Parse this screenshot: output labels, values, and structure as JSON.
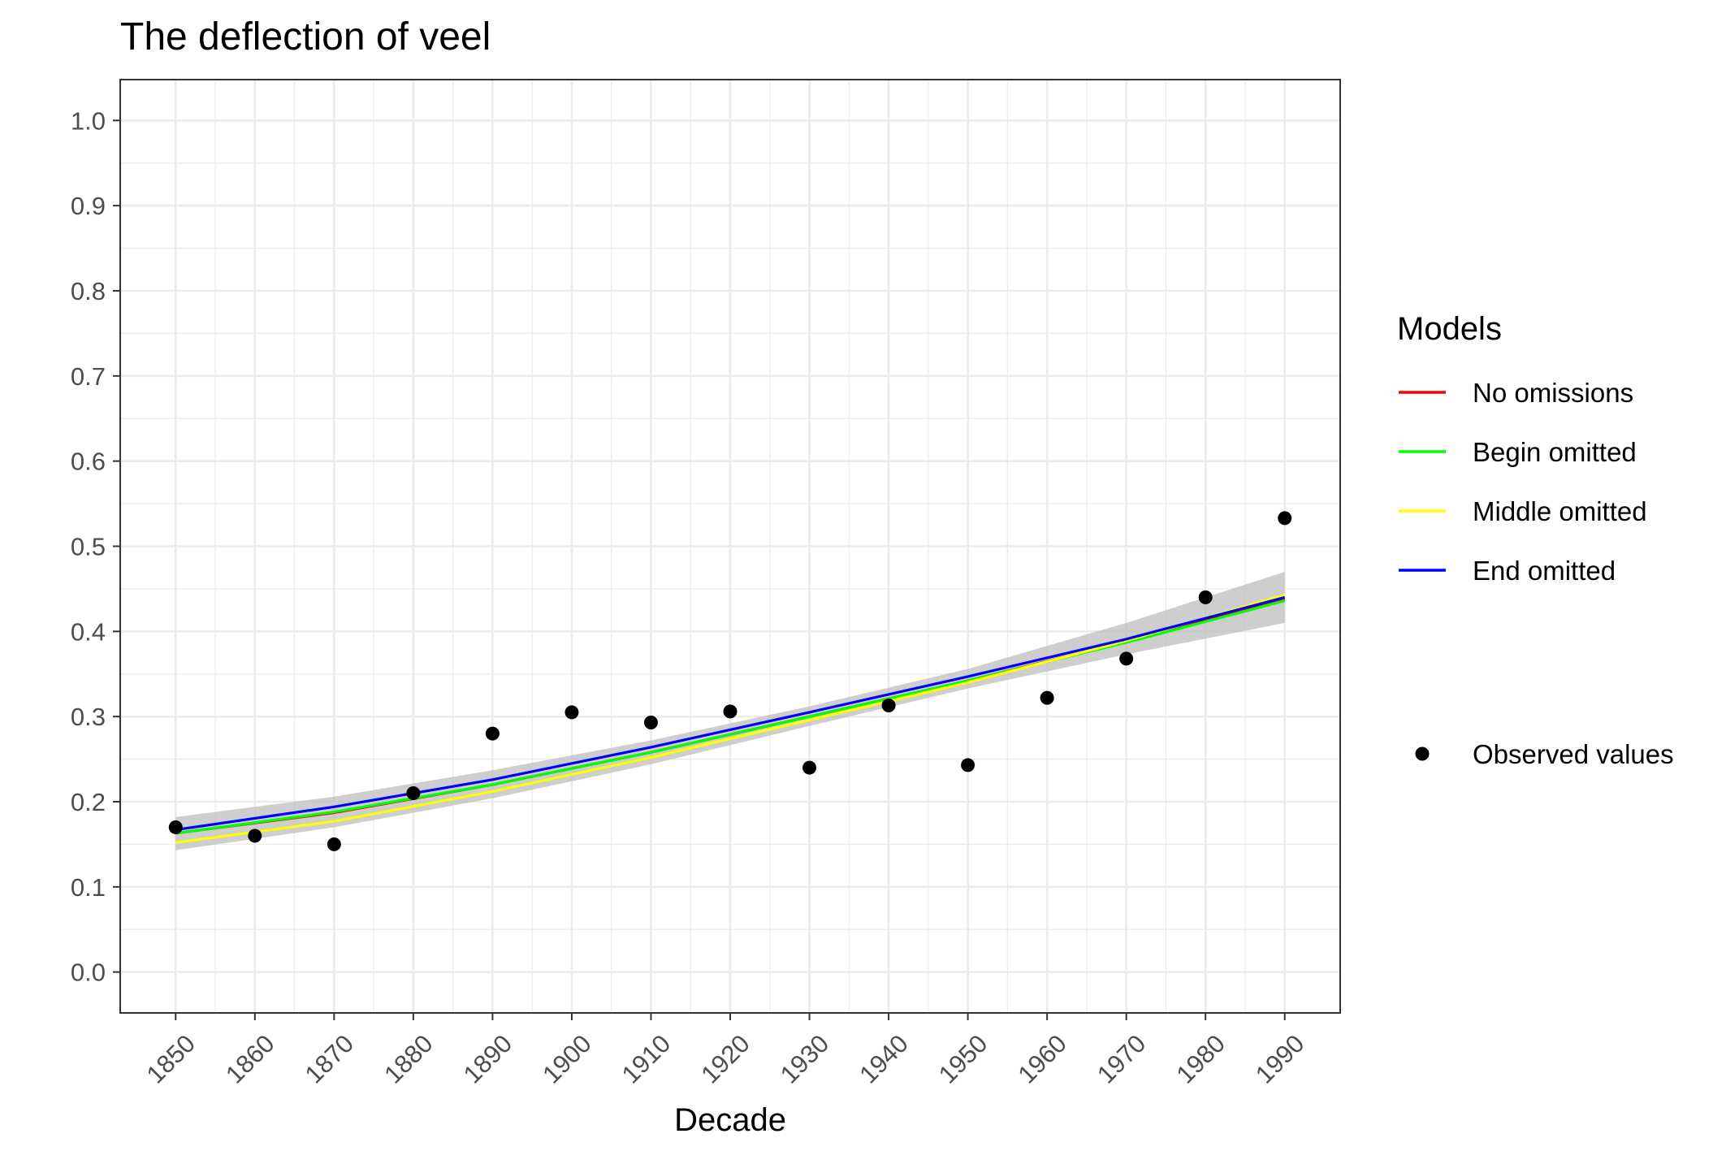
{
  "chart_data": {
    "type": "line",
    "title": "The deflection of veel",
    "xlabel": "Decade",
    "ylabel": "",
    "xlim": [
      1843,
      1997
    ],
    "ylim": [
      -0.048,
      1.048
    ],
    "x_ticks": [
      1850,
      1860,
      1870,
      1880,
      1890,
      1900,
      1910,
      1920,
      1930,
      1940,
      1950,
      1960,
      1970,
      1980,
      1990
    ],
    "y_ticks": [
      "0.0",
      "0.1",
      "0.2",
      "0.3",
      "0.4",
      "0.5",
      "0.6",
      "0.7",
      "0.8",
      "0.9",
      "1.0"
    ],
    "grid": true,
    "legend_title": "Models",
    "legend_position": "right",
    "observed": {
      "name": "Observed values",
      "color": "#000000",
      "x": [
        1850,
        1860,
        1870,
        1880,
        1890,
        1900,
        1910,
        1920,
        1930,
        1940,
        1950,
        1960,
        1970,
        1980,
        1990
      ],
      "y": [
        0.17,
        0.16,
        0.15,
        0.21,
        0.28,
        0.305,
        0.293,
        0.306,
        0.24,
        0.313,
        0.243,
        0.322,
        0.368,
        0.44,
        0.533
      ]
    },
    "series": [
      {
        "name": "No omissions",
        "color": "#ff0000",
        "x": [
          1850,
          1870,
          1890,
          1910,
          1930,
          1950,
          1970,
          1990
        ],
        "y": [
          0.163,
          0.187,
          0.22,
          0.258,
          0.3,
          0.342,
          0.388,
          0.438
        ]
      },
      {
        "name": "Begin omitted",
        "color": "#00ff00",
        "x": [
          1850,
          1870,
          1890,
          1910,
          1930,
          1950,
          1970,
          1990
        ],
        "y": [
          0.163,
          0.188,
          0.22,
          0.258,
          0.3,
          0.342,
          0.387,
          0.436
        ]
      },
      {
        "name": "Middle omitted",
        "color": "#ffff00",
        "x": [
          1850,
          1870,
          1890,
          1910,
          1930,
          1950,
          1970,
          1990
        ],
        "y": [
          0.152,
          0.177,
          0.212,
          0.252,
          0.296,
          0.34,
          0.389,
          0.443
        ]
      },
      {
        "name": "End omitted",
        "color": "#0000ff",
        "x": [
          1850,
          1870,
          1890,
          1910,
          1930,
          1950,
          1970,
          1990
        ],
        "y": [
          0.167,
          0.194,
          0.226,
          0.264,
          0.305,
          0.347,
          0.391,
          0.44
        ]
      }
    ],
    "confidence_band": {
      "color": "#bebebe",
      "x": [
        1850,
        1870,
        1890,
        1910,
        1930,
        1950,
        1970,
        1990
      ],
      "lower": [
        0.143,
        0.17,
        0.204,
        0.244,
        0.289,
        0.333,
        0.373,
        0.41
      ],
      "upper": [
        0.182,
        0.206,
        0.237,
        0.272,
        0.312,
        0.356,
        0.41,
        0.47
      ]
    }
  }
}
